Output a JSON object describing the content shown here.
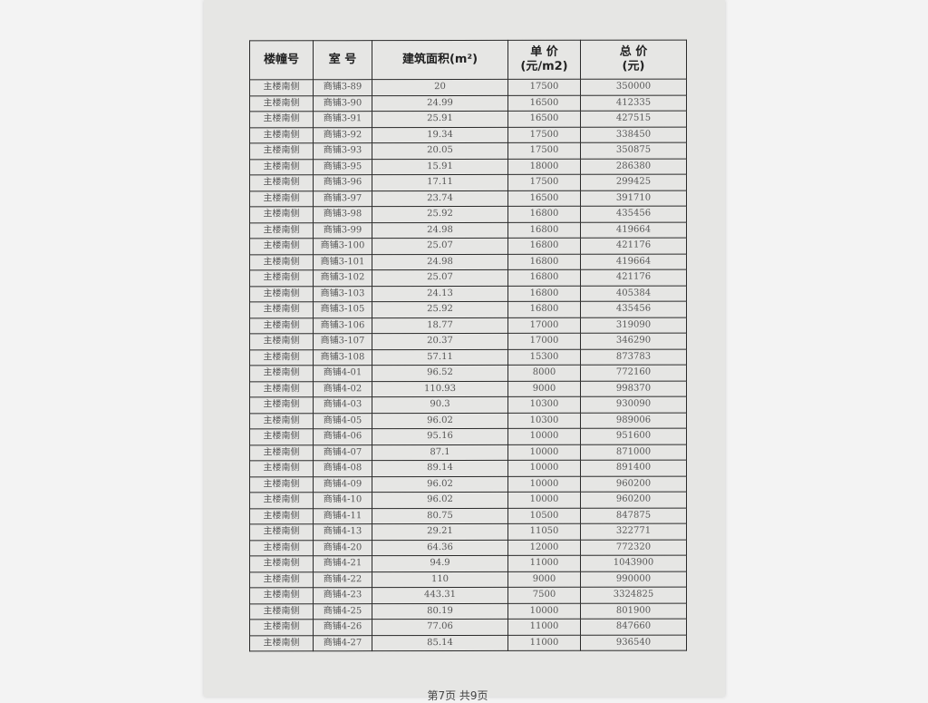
{
  "table": {
    "headers": [
      "楼幢号",
      "室 号",
      "建筑面积(m²)",
      "单 价\n(元/m2)",
      "总 价\n(元)"
    ],
    "rows": [
      [
        "主楼南侧",
        "商铺3-89",
        "20",
        "17500",
        "350000"
      ],
      [
        "主楼南侧",
        "商铺3-90",
        "24.99",
        "16500",
        "412335"
      ],
      [
        "主楼南侧",
        "商铺3-91",
        "25.91",
        "16500",
        "427515"
      ],
      [
        "主楼南侧",
        "商铺3-92",
        "19.34",
        "17500",
        "338450"
      ],
      [
        "主楼南侧",
        "商铺3-93",
        "20.05",
        "17500",
        "350875"
      ],
      [
        "主楼南侧",
        "商铺3-95",
        "15.91",
        "18000",
        "286380"
      ],
      [
        "主楼南侧",
        "商铺3-96",
        "17.11",
        "17500",
        "299425"
      ],
      [
        "主楼南侧",
        "商铺3-97",
        "23.74",
        "16500",
        "391710"
      ],
      [
        "主楼南侧",
        "商铺3-98",
        "25.92",
        "16800",
        "435456"
      ],
      [
        "主楼南侧",
        "商铺3-99",
        "24.98",
        "16800",
        "419664"
      ],
      [
        "主楼南侧",
        "商铺3-100",
        "25.07",
        "16800",
        "421176"
      ],
      [
        "主楼南侧",
        "商铺3-101",
        "24.98",
        "16800",
        "419664"
      ],
      [
        "主楼南侧",
        "商铺3-102",
        "25.07",
        "16800",
        "421176"
      ],
      [
        "主楼南侧",
        "商铺3-103",
        "24.13",
        "16800",
        "405384"
      ],
      [
        "主楼南侧",
        "商铺3-105",
        "25.92",
        "16800",
        "435456"
      ],
      [
        "主楼南侧",
        "商铺3-106",
        "18.77",
        "17000",
        "319090"
      ],
      [
        "主楼南侧",
        "商铺3-107",
        "20.37",
        "17000",
        "346290"
      ],
      [
        "主楼南侧",
        "商铺3-108",
        "57.11",
        "15300",
        "873783"
      ],
      [
        "主楼南侧",
        "商铺4-01",
        "96.52",
        "8000",
        "772160"
      ],
      [
        "主楼南侧",
        "商铺4-02",
        "110.93",
        "9000",
        "998370"
      ],
      [
        "主楼南侧",
        "商铺4-03",
        "90.3",
        "10300",
        "930090"
      ],
      [
        "主楼南侧",
        "商铺4-05",
        "96.02",
        "10300",
        "989006"
      ],
      [
        "主楼南侧",
        "商铺4-06",
        "95.16",
        "10000",
        "951600"
      ],
      [
        "主楼南侧",
        "商铺4-07",
        "87.1",
        "10000",
        "871000"
      ],
      [
        "主楼南侧",
        "商铺4-08",
        "89.14",
        "10000",
        "891400"
      ],
      [
        "主楼南侧",
        "商铺4-09",
        "96.02",
        "10000",
        "960200"
      ],
      [
        "主楼南侧",
        "商铺4-10",
        "96.02",
        "10000",
        "960200"
      ],
      [
        "主楼南侧",
        "商铺4-11",
        "80.75",
        "10500",
        "847875"
      ],
      [
        "主楼南侧",
        "商铺4-13",
        "29.21",
        "11050",
        "322771"
      ],
      [
        "主楼南侧",
        "商铺4-20",
        "64.36",
        "12000",
        "772320"
      ],
      [
        "主楼南侧",
        "商铺4-21",
        "94.9",
        "11000",
        "1043900"
      ],
      [
        "主楼南侧",
        "商铺4-22",
        "110",
        "9000",
        "990000"
      ],
      [
        "主楼南侧",
        "商铺4-23",
        "443.31",
        "7500",
        "3324825"
      ],
      [
        "主楼南侧",
        "商铺4-25",
        "80.19",
        "10000",
        "801900"
      ],
      [
        "主楼南侧",
        "商铺4-26",
        "77.06",
        "11000",
        "847660"
      ],
      [
        "主楼南侧",
        "商铺4-27",
        "85.14",
        "11000",
        "936540"
      ]
    ]
  },
  "footer": {
    "page_label": "第7页 共9页"
  }
}
